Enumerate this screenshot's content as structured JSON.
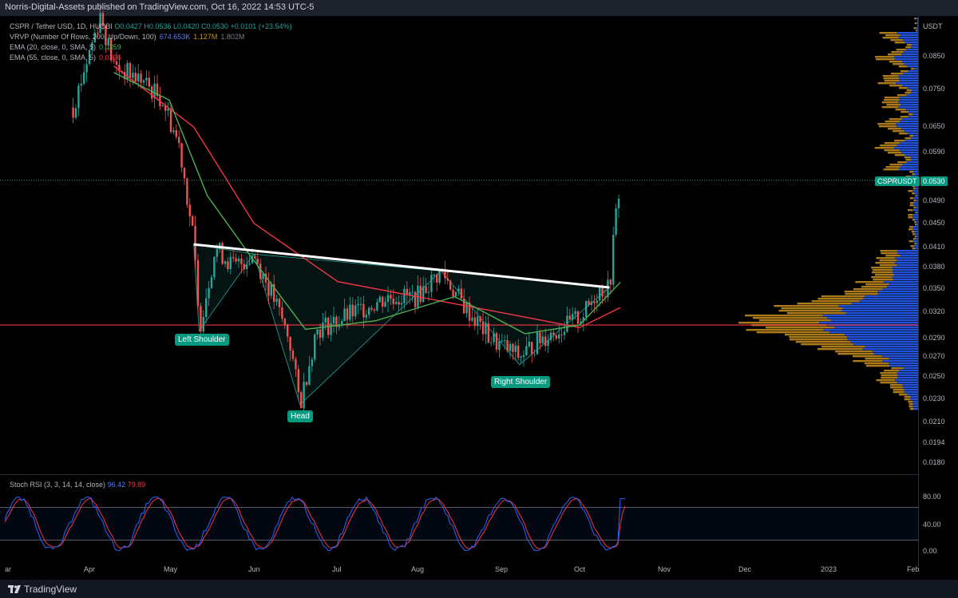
{
  "header": {
    "publisher_line": "Norris-Digital-Assets published on TradingView.com, Oct 16, 2022 14:53 UTC-5"
  },
  "legend": {
    "symbol": "CSPR / Tether USD, 1D, HUOBI",
    "ohlc": "O0.0427  H0.0536  L0.0420  C0.0530  +0.0101 (+23.54%)",
    "vrvp_label": "VRVP (Number Of Rows, 200, Up/Down, 100)",
    "vrvp_values": [
      "674.653K",
      "1.127M",
      "1.802M"
    ],
    "ema20_label": "EMA (20, close, 0, SMA, 5)",
    "ema20_value": "0.0359",
    "ema55_label": "EMA (55, close, 0, SMA, 5)",
    "ema55_value": "0.0326"
  },
  "price_axis": {
    "currency": "USDT",
    "labels": [
      "0.0850",
      "0.0750",
      "0.0650",
      "0.0590",
      "0.0490",
      "0.0450",
      "0.0410",
      "0.0380",
      "0.0350",
      "0.0320",
      "0.0290",
      "0.0270",
      "0.0250",
      "0.0230",
      "0.0210",
      "0.0194",
      "0.0180"
    ],
    "symbol_tag": "CSPRUSDT",
    "last_price": "0.0530"
  },
  "stoch": {
    "label": "Stoch RSI (3, 3, 14, 14, close)",
    "k_value": "96.42",
    "d_value": "79.89",
    "axis_labels": [
      "80.00",
      "40.00",
      "0.00"
    ]
  },
  "time_axis": {
    "labels": [
      "ar",
      "Apr",
      "May",
      "Jun",
      "Jul",
      "Aug",
      "Sep",
      "Oct",
      "Nov",
      "Dec",
      "2023",
      "Feb"
    ]
  },
  "annotations": {
    "left_shoulder": "Left Shoulder",
    "head": "Head",
    "right_shoulder": "Right Shoulder"
  },
  "footer": {
    "brand": "TradingView"
  },
  "colors": {
    "up": "#26a69a",
    "down": "#ef5350",
    "ema20": "#4caf50",
    "ema55": "#f23645",
    "neckline": "#ffffff",
    "support": "#f23645",
    "vp_up": "#2962ff",
    "vp_down": "#c98f1e",
    "stoch_k": "#2962ff",
    "stoch_d": "#f23645"
  },
  "chart_data": {
    "type": "candlestick",
    "title": "CSPR / Tether USD, 1D, HUOBI",
    "ylabel": "USDT",
    "y_scale": "log",
    "ylim": [
      0.018,
      0.1
    ],
    "last_price": 0.053,
    "support_level": 0.0305,
    "neckline": {
      "from": [
        "May 10",
        0.0415
      ],
      "to": [
        "Oct 12",
        0.0352
      ]
    },
    "pattern": "inverse head and shoulders",
    "points": [
      [
        "Mar 25",
        0.07
      ],
      [
        "Apr 5",
        0.1
      ],
      [
        "Apr 10",
        0.082
      ],
      [
        "Apr 20",
        0.078
      ],
      [
        "Apr 28",
        0.072
      ],
      [
        "May 5",
        0.06
      ],
      [
        "May 10",
        0.042
      ],
      [
        "May 12",
        0.03
      ],
      [
        "May 18",
        0.041
      ],
      [
        "May 25",
        0.038
      ],
      [
        "Jun 1",
        0.04
      ],
      [
        "Jun 8",
        0.034
      ],
      [
        "Jun 14",
        0.029
      ],
      [
        "Jun 18",
        0.0225
      ],
      [
        "Jun 24",
        0.03
      ],
      [
        "Jul 1",
        0.031
      ],
      [
        "Jul 10",
        0.0325
      ],
      [
        "Jul 20",
        0.034
      ],
      [
        "Aug 1",
        0.034
      ],
      [
        "Aug 10",
        0.0375
      ],
      [
        "Aug 18",
        0.033
      ],
      [
        "Aug 28",
        0.029
      ],
      [
        "Sep 8",
        0.027
      ],
      [
        "Sep 16",
        0.029
      ],
      [
        "Sep 26",
        0.0305
      ],
      [
        "Oct 3",
        0.032
      ],
      [
        "Oct 8",
        0.035
      ],
      [
        "Oct 12",
        0.035
      ],
      [
        "Oct 14",
        0.045
      ],
      [
        "Oct 16",
        0.053
      ]
    ],
    "ema20": [
      [
        "Apr 10",
        0.08
      ],
      [
        "May 1",
        0.072
      ],
      [
        "May 15",
        0.05
      ],
      [
        "Jun 1",
        0.039
      ],
      [
        "Jun 20",
        0.03
      ],
      [
        "Jul 15",
        0.031
      ],
      [
        "Aug 15",
        0.034
      ],
      [
        "Sep 10",
        0.0295
      ],
      [
        "Oct 1",
        0.0305
      ],
      [
        "Oct 16",
        0.0359
      ]
    ],
    "ema55": [
      [
        "Apr 10",
        0.082
      ],
      [
        "May 10",
        0.065
      ],
      [
        "Jun 1",
        0.045
      ],
      [
        "Jul 1",
        0.036
      ],
      [
        "Aug 1",
        0.034
      ],
      [
        "Sep 1",
        0.032
      ],
      [
        "Oct 1",
        0.0302
      ],
      [
        "Oct 16",
        0.0326
      ]
    ],
    "stoch_rsi_k_last": 96.42,
    "stoch_rsi_d_last": 79.89
  }
}
